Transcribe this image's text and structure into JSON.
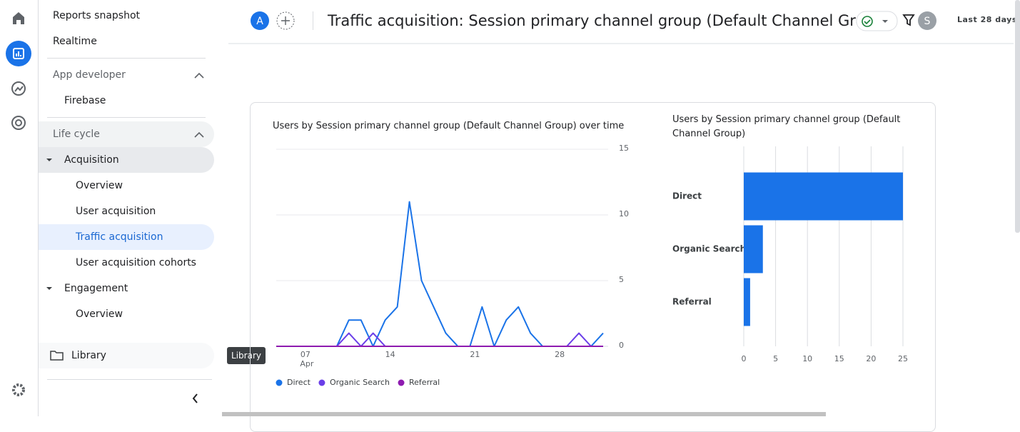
{
  "sidebar": {
    "items": [
      "Reports snapshot",
      "Realtime",
      "App developer",
      "Firebase",
      "Life cycle",
      "Acquisition",
      "Overview",
      "User acquisition",
      "Traffic acquisition",
      "User acquisition cohorts",
      "Engagement",
      "Overview"
    ],
    "library": "Library"
  },
  "header": {
    "avatar": "A",
    "title": "Traffic acquisition: Session primary channel group (Default Channel Group)",
    "user": "S",
    "date_range": "Last 28 days"
  },
  "tooltip": "Library",
  "chart_data": [
    {
      "type": "line",
      "title": "Users by Session primary channel group (Default Channel Group) over time",
      "categories": [
        null,
        null,
        "07",
        null,
        null,
        null,
        null,
        null,
        null,
        "14",
        null,
        null,
        null,
        null,
        null,
        null,
        "21",
        null,
        null,
        null,
        null,
        null,
        null,
        "28",
        null,
        null,
        null,
        null
      ],
      "month_label": "Apr",
      "series": [
        {
          "name": "Direct",
          "color": "#1a73e8",
          "values": [
            0,
            0,
            0,
            0,
            0,
            0,
            2,
            2,
            0,
            2,
            3,
            11,
            5,
            3,
            1,
            0,
            0,
            3,
            0,
            2,
            3,
            1,
            0,
            0,
            0,
            0,
            0,
            1
          ]
        },
        {
          "name": "Organic Search",
          "color": "#6a3ee8",
          "values": [
            0,
            0,
            0,
            0,
            0,
            0,
            1,
            0,
            1,
            0,
            0,
            0,
            0,
            0,
            0,
            0,
            0,
            0,
            0,
            0,
            0,
            0,
            0,
            0,
            0,
            1,
            0,
            0
          ]
        },
        {
          "name": "Referral",
          "color": "#8e1bb0",
          "values": [
            0,
            0,
            0,
            0,
            0,
            0,
            0,
            0,
            0,
            0,
            0,
            0,
            0,
            0,
            0,
            0,
            0,
            0,
            0,
            0,
            0,
            0,
            0,
            0,
            0,
            0,
            0,
            0
          ]
        }
      ],
      "ylim": [
        0,
        15
      ],
      "yticks": [
        0,
        5,
        10,
        15
      ],
      "grid": true
    },
    {
      "type": "bar",
      "orientation": "horizontal",
      "title": "Users by Session primary channel group (Default Channel Group)",
      "categories": [
        "Direct",
        "Organic Search",
        "Referral"
      ],
      "values": [
        25,
        3,
        1
      ],
      "color": "#1a73e8",
      "xlim": [
        0,
        25
      ],
      "xticks": [
        0,
        5,
        10,
        15,
        20,
        25
      ],
      "grid": true
    }
  ]
}
